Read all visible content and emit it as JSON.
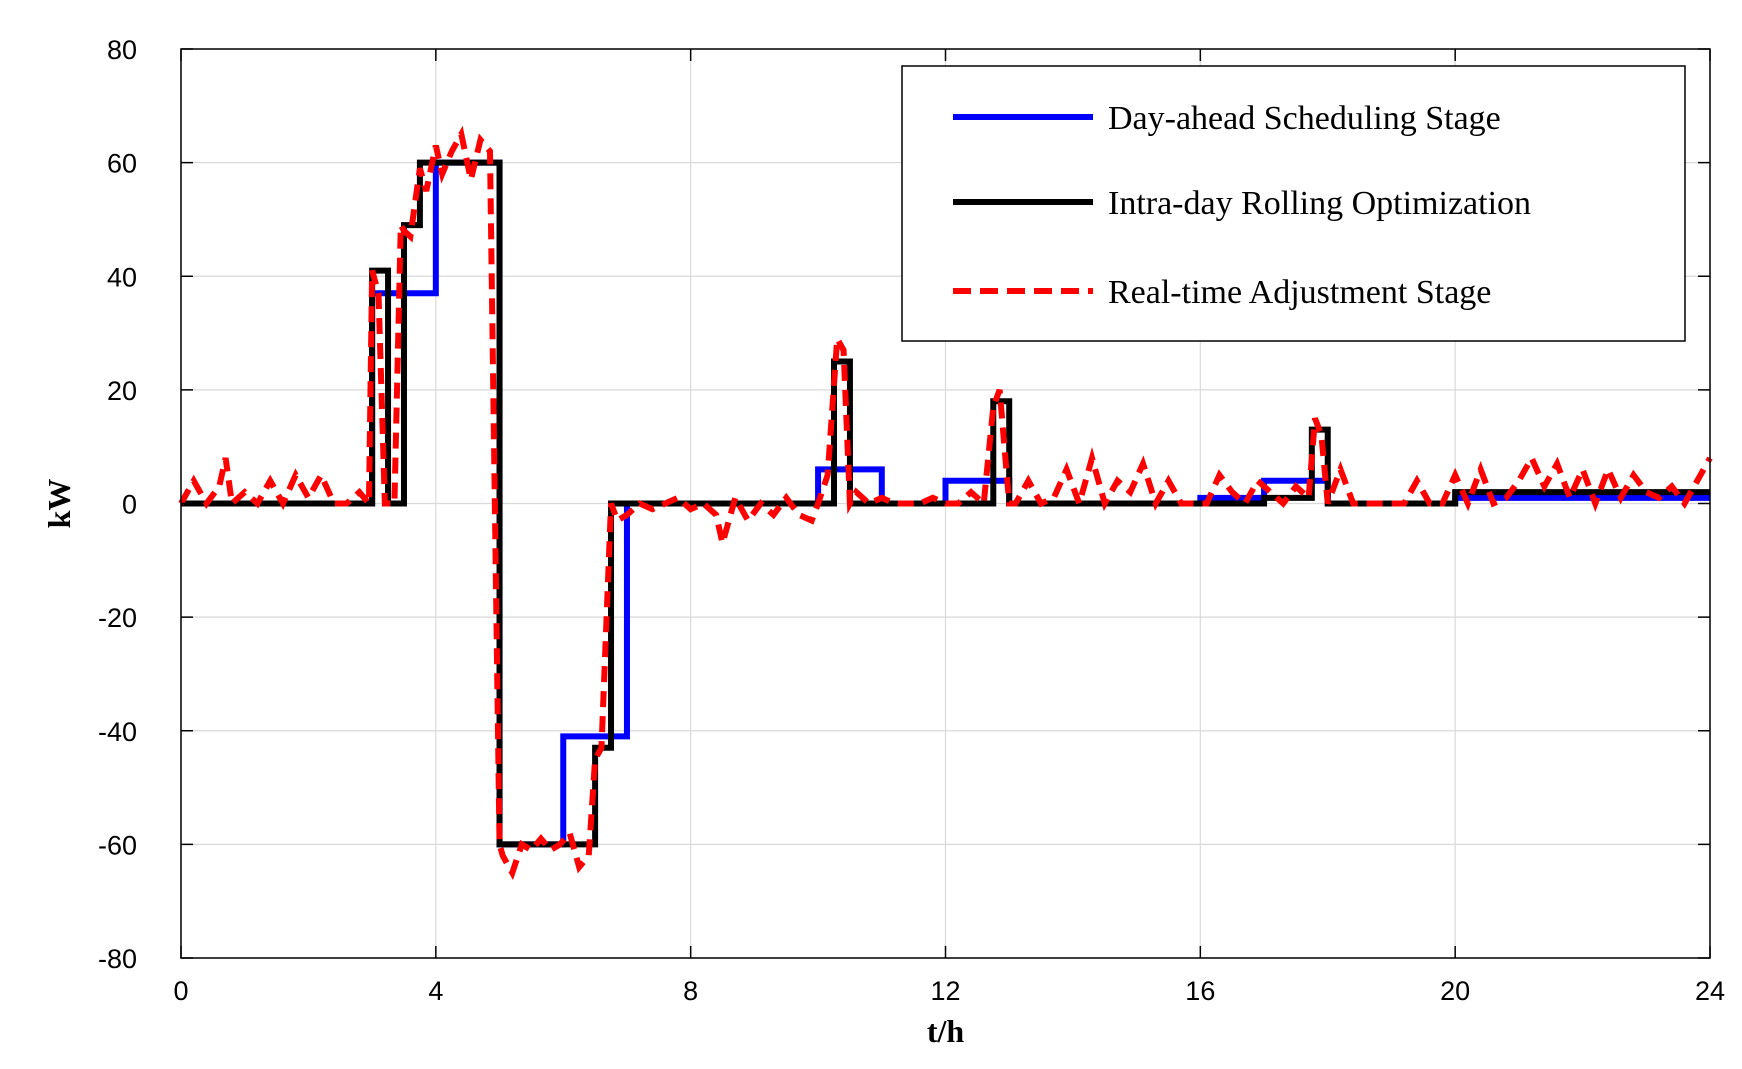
{
  "chart_data": {
    "type": "line",
    "title": "",
    "xlabel": "t/h",
    "ylabel": "kW",
    "xlim": [
      0,
      24
    ],
    "ylim": [
      -80,
      80
    ],
    "xticks": [
      0,
      4,
      8,
      12,
      16,
      20,
      24
    ],
    "yticks": [
      80,
      60,
      40,
      20,
      0,
      -20,
      -40,
      -60,
      -80
    ],
    "grid": true,
    "legend_position": "top-right",
    "series": [
      {
        "name": "Day-ahead Scheduling Stage",
        "color": "#0000ff",
        "style": "solid",
        "step": true,
        "x": [
          0,
          3,
          4,
          5,
          6,
          7,
          10,
          11,
          12,
          13,
          16,
          17,
          18,
          20,
          24
        ],
        "y": [
          0,
          37,
          60,
          -60,
          -41,
          0,
          6,
          0,
          4,
          0,
          1,
          4,
          0,
          1,
          1
        ]
      },
      {
        "name": "Intra-day Rolling Optimization",
        "color": "#000000",
        "style": "solid",
        "step": true,
        "x": [
          0,
          3,
          3.25,
          3.5,
          3.75,
          4,
          5,
          6.5,
          6.75,
          7,
          10.25,
          10.5,
          12.75,
          13,
          16.75,
          17,
          17.75,
          18,
          20,
          24
        ],
        "y": [
          0,
          41,
          0,
          49,
          60,
          60,
          -60,
          -43,
          0,
          0,
          25,
          0,
          18,
          0,
          0,
          1,
          13,
          0,
          2,
          2
        ]
      },
      {
        "name": "Real-time Adjustment Stage",
        "color": "#ff0000",
        "style": "dashed",
        "step": false,
        "x": [
          0,
          0.2,
          0.4,
          0.6,
          0.7,
          0.8,
          1.0,
          1.2,
          1.4,
          1.6,
          1.8,
          2.0,
          2.2,
          2.4,
          2.6,
          2.8,
          2.95,
          3.0,
          3.1,
          3.2,
          3.25,
          3.35,
          3.45,
          3.5,
          3.6,
          3.75,
          3.85,
          4.0,
          4.1,
          4.25,
          4.4,
          4.55,
          4.7,
          4.85,
          5.0,
          5.05,
          5.2,
          5.35,
          5.5,
          5.65,
          5.8,
          5.95,
          6.1,
          6.25,
          6.4,
          6.5,
          6.6,
          6.75,
          6.85,
          7.0,
          7.2,
          7.4,
          7.6,
          7.8,
          8.0,
          8.2,
          8.4,
          8.5,
          8.7,
          8.9,
          9.1,
          9.3,
          9.5,
          9.7,
          9.9,
          10.0,
          10.15,
          10.3,
          10.4,
          10.5,
          10.6,
          10.8,
          11.0,
          11.2,
          11.4,
          11.6,
          11.8,
          12.0,
          12.2,
          12.4,
          12.6,
          12.75,
          12.85,
          13.0,
          13.1,
          13.3,
          13.5,
          13.7,
          13.9,
          14.1,
          14.3,
          14.5,
          14.7,
          14.9,
          15.1,
          15.3,
          15.5,
          15.7,
          15.9,
          16.1,
          16.3,
          16.5,
          16.7,
          16.9,
          17.1,
          17.3,
          17.5,
          17.7,
          17.8,
          17.9,
          18.0,
          18.2,
          18.4,
          18.6,
          18.8,
          19.0,
          19.2,
          19.4,
          19.6,
          19.8,
          20.0,
          20.2,
          20.4,
          20.6,
          20.8,
          21.0,
          21.2,
          21.4,
          21.6,
          21.8,
          22.0,
          22.2,
          22.4,
          22.6,
          22.8,
          23.0,
          23.2,
          23.4,
          23.6,
          23.8,
          24.0
        ],
        "y": [
          0,
          4,
          0,
          3,
          8,
          0,
          2,
          0,
          4,
          0,
          5,
          1,
          5,
          0,
          0,
          2,
          0,
          41,
          37,
          0,
          0,
          0,
          49,
          48,
          47,
          59,
          55,
          63,
          58,
          62,
          65,
          57,
          64,
          62,
          -60,
          -62,
          -65,
          -60,
          -61,
          -59,
          -61,
          -60,
          -58,
          -64,
          -62,
          -45,
          -43,
          0,
          -3,
          -2,
          0,
          -1,
          0,
          1,
          -1,
          0,
          -2,
          -7,
          1,
          -3,
          0,
          -2,
          1,
          -2,
          -3,
          0,
          5,
          29,
          27,
          0,
          2,
          0,
          1,
          0,
          0,
          0,
          1,
          0,
          0,
          2,
          0,
          17,
          20,
          0,
          0,
          4,
          0,
          1,
          6,
          0,
          8,
          0,
          4,
          2,
          7,
          0,
          4,
          0,
          0,
          0,
          5,
          2,
          0,
          4,
          2,
          0,
          3,
          1,
          15,
          12,
          0,
          6,
          0,
          0,
          0,
          0,
          0,
          4,
          0,
          0,
          5,
          0,
          6,
          0,
          1,
          4,
          8,
          3,
          7,
          1,
          6,
          0,
          6,
          1,
          5,
          2,
          1,
          3,
          0,
          4,
          8
        ]
      }
    ]
  }
}
